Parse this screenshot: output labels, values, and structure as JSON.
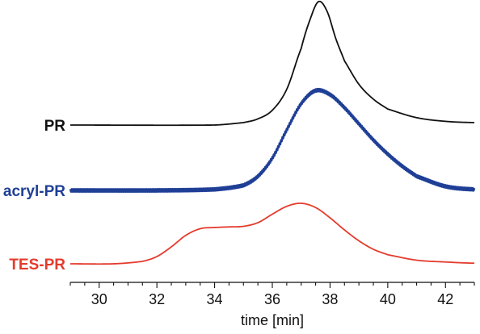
{
  "chart_data": {
    "type": "line",
    "xlabel": "time [min]",
    "ylabel": "",
    "xlim": [
      29,
      43
    ],
    "x_ticks": [
      30,
      32,
      34,
      36,
      38,
      40,
      42
    ],
    "x_tick_labels": [
      "30",
      "32",
      "34",
      "36",
      "38",
      "40",
      "42"
    ],
    "x_minor_step": 0.5,
    "grid": false,
    "legend": "none",
    "series": [
      {
        "name": "PR",
        "color": "#111111",
        "x": [
          29.0,
          34.0,
          35.0,
          35.5,
          36.0,
          36.5,
          37.0,
          37.3,
          37.6,
          37.9,
          38.2,
          38.5,
          39.0,
          39.5,
          40.0,
          41.0,
          42.0,
          43.0
        ],
        "y": [
          0.0,
          0.0,
          0.02,
          0.05,
          0.12,
          0.29,
          0.62,
          0.85,
          1.0,
          0.92,
          0.7,
          0.52,
          0.33,
          0.21,
          0.13,
          0.06,
          0.03,
          0.02
        ]
      },
      {
        "name": "acryl-PR",
        "color": "#1f3f96",
        "x": [
          29.0,
          32.0,
          34.0,
          35.0,
          35.5,
          36.0,
          36.5,
          37.0,
          37.5,
          38.0,
          38.5,
          39.0,
          39.5,
          40.0,
          40.5,
          41.0,
          42.0,
          43.0
        ],
        "y": [
          0.0,
          0.0,
          0.01,
          0.05,
          0.14,
          0.32,
          0.6,
          0.86,
          0.99,
          0.95,
          0.82,
          0.66,
          0.5,
          0.36,
          0.24,
          0.14,
          0.04,
          0.01
        ]
      },
      {
        "name": "TES-PR",
        "color": "#e43b2c",
        "x": [
          29.0,
          30.5,
          31.5,
          32.0,
          32.5,
          33.0,
          33.5,
          34.0,
          34.5,
          35.0,
          35.5,
          36.0,
          36.5,
          37.0,
          37.5,
          38.0,
          38.5,
          39.0,
          39.5,
          40.0,
          41.0,
          42.0,
          43.0
        ],
        "y": [
          0.0,
          0.0,
          0.04,
          0.12,
          0.28,
          0.47,
          0.58,
          0.6,
          0.61,
          0.62,
          0.68,
          0.82,
          0.95,
          1.0,
          0.93,
          0.76,
          0.56,
          0.38,
          0.24,
          0.15,
          0.06,
          0.03,
          0.01
        ]
      }
    ]
  }
}
